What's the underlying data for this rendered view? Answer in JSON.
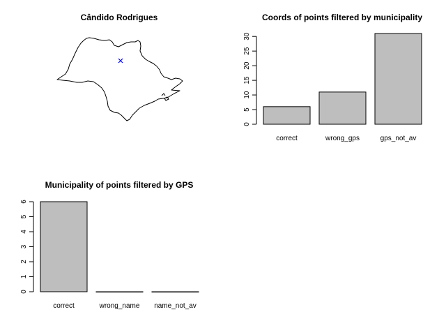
{
  "chart_data": [
    {
      "type": "map",
      "title": "Cândido Rodrigues",
      "marker": {
        "symbol": "x",
        "color": "#0000ff"
      },
      "outline_color": "#000000"
    },
    {
      "type": "bar",
      "title": "Coords of points filtered by municipality",
      "categories": [
        "correct",
        "wrong_gps",
        "gps_not_av"
      ],
      "values": [
        6,
        11,
        31
      ],
      "ylim": [
        0,
        31
      ],
      "yticks": [
        0,
        5,
        10,
        15,
        20,
        25,
        30
      ],
      "bar_color": "#bebebe"
    },
    {
      "type": "bar",
      "title": "Municipality of points filtered by GPS",
      "categories": [
        "correct",
        "wrong_name",
        "name_not_av"
      ],
      "values": [
        6,
        0,
        0
      ],
      "ylim": [
        0,
        6
      ],
      "yticks": [
        0,
        1,
        2,
        3,
        4,
        5,
        6
      ],
      "bar_color": "#bebebe"
    }
  ]
}
